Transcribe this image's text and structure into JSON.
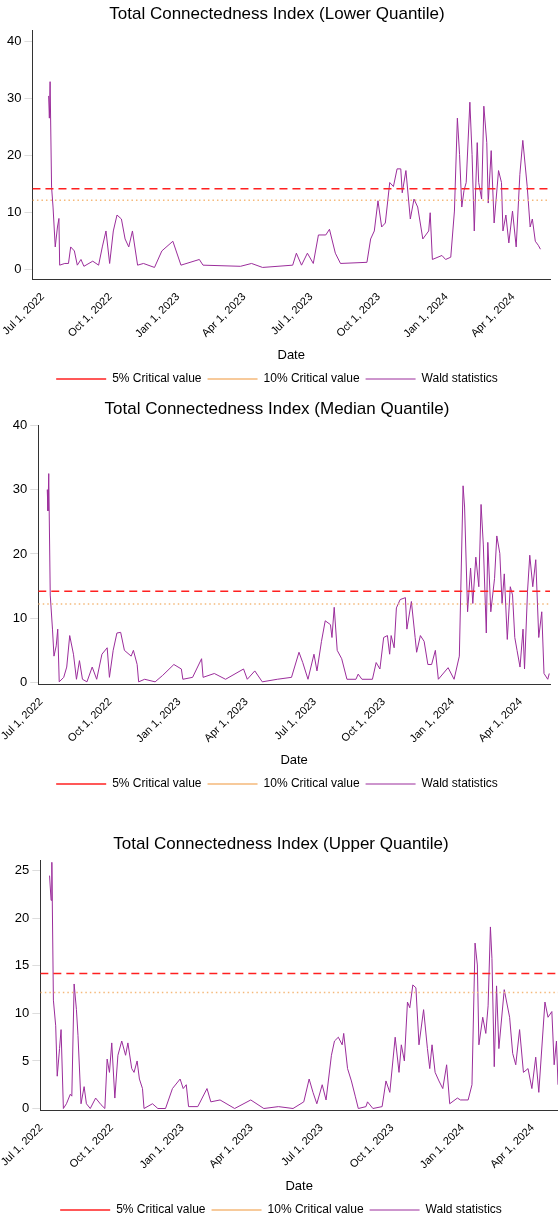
{
  "chart_data": [
    {
      "type": "line",
      "title": "Total Connectedness Index (Lower Quantile)",
      "xlabel": "Date",
      "legend": "bottom",
      "xlim": [
        "2022-06-17",
        "2024-05-21"
      ],
      "ylim": [
        -1.7,
        42
      ],
      "yticks": [
        0,
        10,
        20,
        30,
        40
      ],
      "xticks": [
        {
          "value": "2022-07-01",
          "label": "Jul 1, 2022"
        },
        {
          "value": "2022-10-01",
          "label": "Oct 1, 2022"
        },
        {
          "value": "2023-01-01",
          "label": "Jan 1, 2023"
        },
        {
          "value": "2023-04-01",
          "label": "Apr 1, 2023"
        },
        {
          "value": "2023-07-01",
          "label": "Jul 1, 2023"
        },
        {
          "value": "2023-10-01",
          "label": "Oct 1, 2023"
        },
        {
          "value": "2024-01-01",
          "label": "Jan 1, 2024"
        },
        {
          "value": "2024-04-01",
          "label": "Apr 1, 2024"
        }
      ],
      "ref_lines": [
        {
          "axis": "y",
          "value": 14.2,
          "label": "5% Critical value",
          "color": "#ff2020",
          "line_style": "dashed"
        },
        {
          "axis": "y",
          "value": 12.2,
          "label": "10% Critical value",
          "color": "#f5b97a",
          "line_style": "dotted"
        }
      ],
      "x": [
        "2022-07-09",
        "2022-07-10",
        "2022-07-11",
        "2022-07-13",
        "2022-07-15",
        "2022-07-18",
        "2022-07-21",
        "2022-07-23",
        "2022-07-24",
        "2022-07-31",
        "2022-08-05",
        "2022-08-08",
        "2022-08-13",
        "2022-08-17",
        "2022-08-22",
        "2022-08-26",
        "2022-09-07",
        "2022-09-15",
        "2022-09-20",
        "2022-09-25",
        "2022-09-30",
        "2022-10-05",
        "2022-10-10",
        "2022-10-16",
        "2022-10-21",
        "2022-10-26",
        "2022-10-31",
        "2022-11-07",
        "2022-11-15",
        "2022-11-30",
        "2022-12-10",
        "2022-12-25",
        "2023-01-05",
        "2023-01-30",
        "2023-02-04",
        "2023-03-27",
        "2023-04-11",
        "2023-04-26",
        "2023-06-06",
        "2023-06-11",
        "2023-06-18",
        "2023-06-26",
        "2023-07-04",
        "2023-07-11",
        "2023-07-21",
        "2023-07-26",
        "2023-08-03",
        "2023-08-10",
        "2023-09-15",
        "2023-09-20",
        "2023-09-25",
        "2023-09-30",
        "2023-10-05",
        "2023-10-10",
        "2023-10-16",
        "2023-10-21",
        "2023-10-26",
        "2023-10-31",
        "2023-11-02",
        "2023-11-07",
        "2023-11-13",
        "2023-11-18",
        "2023-11-23",
        "2023-11-30",
        "2023-12-08",
        "2023-12-10",
        "2023-12-13",
        "2023-12-26",
        "2023-12-31",
        "2024-01-07",
        "2024-01-12",
        "2024-01-16",
        "2024-01-19",
        "2024-01-22",
        "2024-01-25",
        "2024-01-28",
        "2024-02-02",
        "2024-02-05",
        "2024-02-08",
        "2024-02-12",
        "2024-02-14",
        "2024-02-18",
        "2024-02-21",
        "2024-02-25",
        "2024-02-27",
        "2024-03-02",
        "2024-03-06",
        "2024-03-12",
        "2024-03-16",
        "2024-03-18",
        "2024-03-22",
        "2024-03-26",
        "2024-03-31",
        "2024-04-05",
        "2024-04-10",
        "2024-04-14",
        "2024-04-20",
        "2024-04-24",
        "2024-04-27",
        "2024-05-01",
        "2024-05-05",
        "2024-05-08"
      ],
      "series": [
        {
          "name": "Wald statistics",
          "color": "#9b2d9b",
          "values": [
            30.5,
            26.6,
            33,
            14.5,
            11,
            4,
            7.5,
            9,
            0.8,
            1.1,
            1.1,
            4,
            3.3,
            0.8,
            1.8,
            0.6,
            1.5,
            0.8,
            4,
            6.8,
            1.1,
            6.8,
            9.6,
            8.9,
            5.4,
            4,
            6.8,
            0.8,
            1.1,
            0.4,
            3.3,
            5,
            0.8,
            1.8,
            0.8,
            0.6,
            1.1,
            0.4,
            0.8,
            2.9,
            0.8,
            2.9,
            1.1,
            6.1,
            6.1,
            7.1,
            2.9,
            1.1,
            1.3,
            5.4,
            6.8,
            12.1,
            7.5,
            8.2,
            15.3,
            14.6,
            17.7,
            17.7,
            13.5,
            17.4,
            8.9,
            12.4,
            11,
            5.4,
            6.8,
            10,
            1.8,
            2.5,
            1.8,
            2.2,
            10.3,
            26.6,
            20.2,
            11,
            13.9,
            15.3,
            29.4,
            20.2,
            6.8,
            22.3,
            15.3,
            12.4,
            28.7,
            22.3,
            11.7,
            20.9,
            8.2,
            17.4,
            15.3,
            6.8,
            9.6,
            4.7,
            10.3,
            4,
            16.7,
            22.7,
            14.6,
            7.5,
            8.9,
            5,
            4.3,
            3.6
          ]
        }
      ]
    },
    {
      "type": "line",
      "title": "Total Connectedness Index (Median Quantile)",
      "xlabel": "Date",
      "legend": "bottom",
      "xlim": [
        "2022-06-27",
        "2024-05-10"
      ],
      "ylim": [
        -0.3,
        40
      ],
      "yticks": [
        0,
        10,
        20,
        30,
        40
      ],
      "xticks": [
        {
          "value": "2022-07-01",
          "label": "Jul 1, 2022"
        },
        {
          "value": "2022-10-01",
          "label": "Oct 1, 2022"
        },
        {
          "value": "2023-01-01",
          "label": "Jan 1, 2023"
        },
        {
          "value": "2023-04-01",
          "label": "Apr 1, 2023"
        },
        {
          "value": "2023-07-01",
          "label": "Jul 1, 2023"
        },
        {
          "value": "2023-10-01",
          "label": "Oct 1, 2023"
        },
        {
          "value": "2024-01-01",
          "label": "Jan 1, 2024"
        },
        {
          "value": "2024-04-01",
          "label": "Apr 1, 2024"
        }
      ],
      "ref_lines": [
        {
          "axis": "y",
          "value": 14.2,
          "label": "5% Critical value",
          "color": "#ff2020",
          "line_style": "dashed"
        },
        {
          "axis": "y",
          "value": 12.2,
          "label": "10% Critical value",
          "color": "#f5b97a",
          "line_style": "dotted"
        }
      ],
      "x": [
        "2022-07-09",
        "2022-07-10",
        "2022-07-11",
        "2022-07-13",
        "2022-07-16",
        "2022-07-18",
        "2022-07-21",
        "2022-07-23",
        "2022-07-25",
        "2022-07-31",
        "2022-08-04",
        "2022-08-08",
        "2022-08-13",
        "2022-08-17",
        "2022-08-21",
        "2022-08-25",
        "2022-08-31",
        "2022-09-07",
        "2022-09-13",
        "2022-09-20",
        "2022-09-27",
        "2022-09-30",
        "2022-10-05",
        "2022-10-10",
        "2022-10-15",
        "2022-10-20",
        "2022-10-29",
        "2022-11-01",
        "2022-11-06",
        "2022-11-08",
        "2022-11-16",
        "2022-11-30",
        "2022-12-10",
        "2022-12-25",
        "2023-01-04",
        "2023-01-06",
        "2023-01-19",
        "2023-01-31",
        "2023-02-02",
        "2023-02-17",
        "2023-03-04",
        "2023-03-28",
        "2023-04-02",
        "2023-04-12",
        "2023-04-22",
        "2023-05-12",
        "2023-05-31",
        "2023-06-10",
        "2023-06-15",
        "2023-06-22",
        "2023-06-30",
        "2023-07-04",
        "2023-07-10",
        "2023-07-15",
        "2023-07-22",
        "2023-07-24",
        "2023-07-27",
        "2023-07-31",
        "2023-08-06",
        "2023-08-13",
        "2023-08-25",
        "2023-08-28",
        "2023-09-02",
        "2023-09-16",
        "2023-09-21",
        "2023-09-26",
        "2023-10-01",
        "2023-10-06",
        "2023-10-09",
        "2023-10-11",
        "2023-10-15",
        "2023-10-18",
        "2023-10-23",
        "2023-10-30",
        "2023-11-01",
        "2023-11-07",
        "2023-11-12",
        "2023-11-14",
        "2023-11-19",
        "2023-11-24",
        "2023-11-29",
        "2023-12-04",
        "2023-12-09",
        "2023-12-13",
        "2023-12-26",
        "2024-01-03",
        "2024-01-10",
        "2024-01-15",
        "2024-01-17",
        "2024-01-21",
        "2024-01-25",
        "2024-01-28",
        "2024-02-01",
        "2024-02-05",
        "2024-02-08",
        "2024-02-11",
        "2024-02-15",
        "2024-02-17",
        "2024-02-21",
        "2024-02-26",
        "2024-02-29",
        "2024-03-04",
        "2024-03-07",
        "2024-03-10",
        "2024-03-14",
        "2024-03-18",
        "2024-03-21",
        "2024-03-24",
        "2024-03-27",
        "2024-03-31",
        "2024-04-04",
        "2024-04-06",
        "2024-04-10",
        "2024-04-13",
        "2024-04-17",
        "2024-04-21",
        "2024-04-25",
        "2024-04-29",
        "2024-05-02",
        "2024-05-07",
        "2024-05-09"
      ],
      "series": [
        {
          "name": "Wald statistics",
          "color": "#9b2d9b",
          "values": [
            30,
            26.7,
            32.5,
            13.6,
            8.3,
            4.1,
            5.7,
            8.3,
            0.1,
            0.8,
            2.4,
            7.3,
            4.4,
            0.5,
            3.4,
            0.5,
            0.1,
            2.4,
            0.5,
            4.4,
            5.4,
            0.8,
            5,
            7.7,
            7.8,
            5,
            4.1,
            5,
            2.8,
            0.1,
            0.5,
            0.1,
            1.1,
            2.8,
            2.1,
            0.5,
            0.8,
            3.7,
            0.8,
            1.4,
            0.5,
            2.1,
            0.5,
            1.8,
            0.1,
            0.5,
            0.8,
            4.7,
            3.1,
            0.5,
            4.4,
            1.8,
            6.4,
            9.6,
            9,
            7,
            11.7,
            5,
            3.7,
            0.5,
            0.5,
            1.3,
            0.5,
            0.5,
            3.1,
            2.1,
            7,
            7.3,
            4.4,
            7.3,
            5.4,
            11.6,
            12.9,
            13.2,
            8.3,
            12.6,
            7,
            4.7,
            7.3,
            6.4,
            2.8,
            2.8,
            5,
            0.5,
            2.3,
            0.5,
            4.1,
            30.6,
            27.3,
            11,
            17.8,
            12.3,
            19.5,
            14.9,
            27.7,
            21.4,
            7.7,
            21.8,
            11,
            16.2,
            22.8,
            20.1,
            12.3,
            16.9,
            6.7,
            14.9,
            13.6,
            7,
            5,
            2.4,
            8.3,
            2.1,
            14.2,
            19.8,
            14.9,
            19.1,
            7,
            11,
            1.4,
            0.5,
            1.4
          ]
        }
      ]
    },
    {
      "type": "line",
      "title": "Total Connectedness Index (Upper Quantile)",
      "xlabel": "Date",
      "legend": "bottom",
      "xlim": [
        "2022-06-30",
        "2024-05-04"
      ],
      "ylim": [
        -0.2,
        26.1
      ],
      "yticks": [
        0,
        5,
        10,
        15,
        20,
        25
      ],
      "xticks": [
        {
          "value": "2022-07-01",
          "label": "Jul 1, 2022"
        },
        {
          "value": "2022-10-01",
          "label": "Oct 1, 2022"
        },
        {
          "value": "2023-01-01",
          "label": "Jan 1, 2023"
        },
        {
          "value": "2023-04-01",
          "label": "Apr 1, 2023"
        },
        {
          "value": "2023-07-01",
          "label": "Jul 1, 2023"
        },
        {
          "value": "2023-10-01",
          "label": "Oct 1, 2023"
        },
        {
          "value": "2024-01-01",
          "label": "Jan 1, 2024"
        },
        {
          "value": "2024-04-01",
          "label": "Apr 1, 2024"
        }
      ],
      "ref_lines": [
        {
          "axis": "y",
          "value": 14.2,
          "label": "5% Critical value",
          "color": "#ff2020",
          "line_style": "dashed"
        },
        {
          "axis": "y",
          "value": 12.2,
          "label": "10% Critical value",
          "color": "#f5b97a",
          "line_style": "dotted"
        }
      ],
      "x": [
        "2022-07-12",
        "2022-07-14",
        "2022-07-15",
        "2022-07-17",
        "2022-07-20",
        "2022-07-22",
        "2022-07-25",
        "2022-07-27",
        "2022-07-30",
        "2022-08-03",
        "2022-08-08",
        "2022-08-10",
        "2022-08-13",
        "2022-08-16",
        "2022-08-18",
        "2022-08-22",
        "2022-08-26",
        "2022-08-29",
        "2022-09-03",
        "2022-09-10",
        "2022-09-17",
        "2022-09-22",
        "2022-09-25",
        "2022-09-28",
        "2022-10-01",
        "2022-10-05",
        "2022-10-09",
        "2022-10-14",
        "2022-10-19",
        "2022-10-22",
        "2022-10-27",
        "2022-10-30",
        "2022-11-03",
        "2022-11-06",
        "2022-11-10",
        "2022-11-12",
        "2022-11-23",
        "2022-11-30",
        "2022-12-10",
        "2022-12-19",
        "2022-12-29",
        "2023-01-02",
        "2023-01-06",
        "2023-01-09",
        "2023-01-21",
        "2023-02-02",
        "2023-02-07",
        "2023-02-19",
        "2023-03-10",
        "2023-03-31",
        "2023-04-17",
        "2023-05-06",
        "2023-05-25",
        "2023-06-08",
        "2023-06-15",
        "2023-06-20",
        "2023-06-25",
        "2023-07-02",
        "2023-07-07",
        "2023-07-14",
        "2023-07-18",
        "2023-07-23",
        "2023-07-28",
        "2023-07-30",
        "2023-08-04",
        "2023-08-09",
        "2023-08-14",
        "2023-08-18",
        "2023-08-28",
        "2023-08-30",
        "2023-09-06",
        "2023-09-18",
        "2023-09-23",
        "2023-09-28",
        "2023-10-05",
        "2023-10-10",
        "2023-10-13",
        "2023-10-17",
        "2023-10-21",
        "2023-10-24",
        "2023-10-28",
        "2023-11-01",
        "2023-11-05",
        "2023-11-11",
        "2023-11-16",
        "2023-11-19",
        "2023-11-22",
        "2023-11-26",
        "2023-12-01",
        "2023-12-06",
        "2023-12-11",
        "2023-12-15",
        "2023-12-25",
        "2023-12-29",
        "2024-01-08",
        "2024-01-13",
        "2024-01-17",
        "2024-01-20",
        "2024-01-22",
        "2024-01-27",
        "2024-01-31",
        "2024-02-03",
        "2024-02-06",
        "2024-02-08",
        "2024-02-11",
        "2024-02-14",
        "2024-02-17",
        "2024-02-24",
        "2024-03-02",
        "2024-03-06",
        "2024-03-10",
        "2024-03-15",
        "2024-03-20",
        "2024-03-26",
        "2024-03-31",
        "2024-04-05",
        "2024-04-09",
        "2024-04-17",
        "2024-04-21",
        "2024-04-26",
        "2024-04-29",
        "2024-05-02",
        "2024-05-04"
      ],
      "series": [
        {
          "name": "Wald statistics",
          "color": "#9b2d9b",
          "values": [
            24.5,
            21.9,
            25.9,
            11.4,
            8.7,
            3.4,
            6.3,
            8.3,
            0,
            0.5,
            1.5,
            1.3,
            13.1,
            10.4,
            7.7,
            0.5,
            2.3,
            0.5,
            0,
            1.1,
            0.4,
            0,
            5.2,
            3.8,
            6.9,
            1.1,
            5.6,
            7.1,
            5.6,
            6.9,
            4.2,
            3.8,
            5,
            3.1,
            2.1,
            0,
            0.5,
            0,
            0,
            2.1,
            3.1,
            2.1,
            2.5,
            0.2,
            0.2,
            2.1,
            0.7,
            0.9,
            0,
            0.9,
            0,
            0.2,
            0,
            0.7,
            3.1,
            1.7,
            0.5,
            2.5,
            0.9,
            5.6,
            7.1,
            7.5,
            6.7,
            7.9,
            4.2,
            2.9,
            1.3,
            0,
            0.2,
            0.7,
            0,
            0.2,
            2.9,
            1.7,
            7.5,
            3.8,
            6.7,
            5,
            11.2,
            10.6,
            13,
            12.7,
            6.7,
            10.4,
            6.3,
            4.2,
            6.7,
            3.8,
            2.9,
            2.1,
            4.6,
            0.5,
            1.1,
            0.9,
            0.9,
            2.5,
            17.4,
            15.1,
            6.7,
            9.6,
            7.9,
            10.8,
            19.1,
            15.8,
            4.4,
            12.9,
            6.3,
            12.5,
            9.6,
            5.8,
            4.6,
            8.3,
            3.8,
            4.2,
            2.1,
            5.4,
            1.7,
            11.2,
            9.6,
            10.2,
            4.6,
            7.1,
            2.5
          ]
        }
      ]
    }
  ]
}
